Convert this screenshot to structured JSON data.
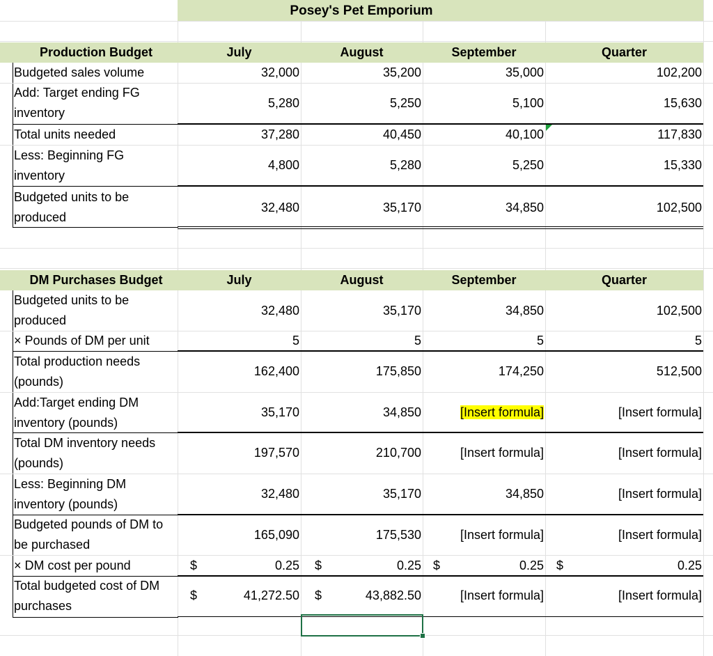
{
  "title": "Posey's Pet Emporium",
  "production": {
    "header": [
      "Production Budget",
      "July",
      "August",
      "September",
      "Quarter"
    ],
    "rows": [
      {
        "label": "Budgeted sales volume",
        "values": [
          "32,000",
          "35,200",
          "35,000",
          "102,200"
        ]
      },
      {
        "label": "Add: Target ending FG inventory",
        "values": [
          "5,280",
          "5,250",
          "5,100",
          "15,630"
        ]
      },
      {
        "label": "Total units needed",
        "values": [
          "37,280",
          "40,450",
          "40,100",
          "117,830"
        ]
      },
      {
        "label": "Less: Beginning FG inventory",
        "values": [
          "4,800",
          "5,280",
          "5,250",
          "15,330"
        ]
      },
      {
        "label": "Budgeted units to be produced",
        "values": [
          "32,480",
          "35,170",
          "34,850",
          "102,500"
        ]
      }
    ]
  },
  "dm": {
    "header": [
      "DM Purchases Budget",
      "July",
      "August",
      "September",
      "Quarter"
    ],
    "rows": [
      {
        "label": "Budgeted units to be produced",
        "values": [
          "32,480",
          "35,170",
          "34,850",
          "102,500"
        ]
      },
      {
        "label": "× Pounds of DM per unit",
        "values": [
          "5",
          "5",
          "5",
          "5"
        ]
      },
      {
        "label": "Total production needs (pounds)",
        "values": [
          "162,400",
          "175,850",
          "174,250",
          "512,500"
        ]
      },
      {
        "label": "Add:Target ending DM inventory (pounds)",
        "values": [
          "35,170",
          "34,850",
          "[Insert formula]",
          "[Insert formula]"
        ]
      },
      {
        "label": "Total DM inventory needs (pounds)",
        "values": [
          "197,570",
          "210,700",
          "[Insert formula]",
          "[Insert formula]"
        ]
      },
      {
        "label": "Less: Beginning DM inventory (pounds)",
        "values": [
          "32,480",
          "35,170",
          "34,850",
          "[Insert formula]"
        ]
      },
      {
        "label": "Budgeted pounds of DM to be purchased",
        "values": [
          "165,090",
          "175,530",
          "[Insert formula]",
          "[Insert formula]"
        ]
      },
      {
        "label": "× DM cost per pound",
        "values": [
          "0.25",
          "0.25",
          "0.25",
          "0.25"
        ]
      },
      {
        "label": "Total budgeted cost of DM purchases",
        "values": [
          "41,272.50",
          "43,882.50",
          "[Insert formula]",
          "[Insert formula]"
        ]
      }
    ],
    "currency_symbol": "$"
  },
  "colors": {
    "header_band": "#d8e4bc",
    "highlight": "#ffff00",
    "selection": "#1e7145"
  }
}
